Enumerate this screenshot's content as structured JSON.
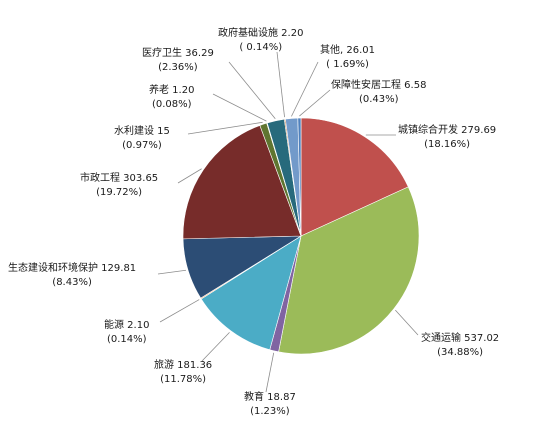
{
  "chart_data": {
    "type": "pie",
    "title": "",
    "start": "top",
    "direction": "clockwise",
    "legend": "none",
    "slices": [
      {
        "name": "城镇综合开发",
        "value": 279.69,
        "percent_label": "(18.16%)",
        "value_label": "279.69",
        "color": "#c0504d"
      },
      {
        "name": "交通运输",
        "value": 537.02,
        "percent_label": "(34.88%)",
        "value_label": "537.02",
        "color": "#9bbb59"
      },
      {
        "name": "教育",
        "value": 18.87,
        "percent_label": "(1.23%)",
        "value_label": "18.87",
        "color": "#8064a2"
      },
      {
        "name": "旅游",
        "value": 181.36,
        "percent_label": "(11.78%)",
        "value_label": "181.36",
        "color": "#4bacc6"
      },
      {
        "name": "能源",
        "value": 2.1,
        "percent_label": "(0.14%)",
        "value_label": "2.10",
        "color": "#f79646"
      },
      {
        "name": "生态建设和环境保护",
        "value": 129.81,
        "percent_label": "(8.43%)",
        "value_label": "129.81",
        "color": "#2c4d75"
      },
      {
        "name": "市政工程",
        "value": 303.65,
        "percent_label": "(19.72%)",
        "value_label": "303.65",
        "color": "#772c2a"
      },
      {
        "name": "水利建设",
        "value": 15,
        "percent_label": "(0.97%)",
        "value_label": "15",
        "color": "#5f7530"
      },
      {
        "name": "养老",
        "value": 1.2,
        "percent_label": "(0.08%)",
        "value_label": "1.20",
        "color": "#4d3b62"
      },
      {
        "name": "医疗卫生",
        "value": 36.29,
        "percent_label": "(2.36%)",
        "value_label": "36.29",
        "color": "#276a7c"
      },
      {
        "name": "政府基础设施",
        "value": 2.2,
        "percent_label": "( 0.14%)",
        "value_label": "2.20",
        "color": "#b65708"
      },
      {
        "name": "其他,",
        "value": 26.01,
        "percent_label": "( 1.69%)",
        "value_label": "26.01",
        "color": "#729aca"
      },
      {
        "name": "保障性安居工程",
        "value": 6.58,
        "percent_label": "(0.43%)",
        "value_label": "6.58",
        "color": "#4f81bd"
      }
    ]
  }
}
